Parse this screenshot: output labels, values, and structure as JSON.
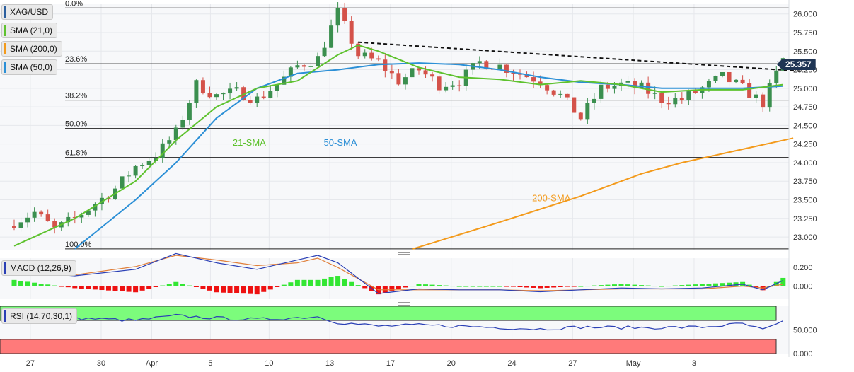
{
  "legend": {
    "symbol": "XAG/USD",
    "sma21": "SMA (21,0)",
    "sma200": "SMA (200,0)",
    "sma50": "SMA (50,0)",
    "macd": "MACD (12,26,9)",
    "rsi": "RSI (14,70,30,1)"
  },
  "colors": {
    "up": "#3b8f4f",
    "down": "#d4524a",
    "sma21": "#5ec22e",
    "sma50": "#2b8fd6",
    "sma200": "#f39a1b",
    "macd_line": "#2a3fb5",
    "signal_line": "#e07f3a",
    "hist_pos": "#33e633",
    "hist_neg": "#ee1111",
    "rsi_line": "#2a3fb5",
    "overbought": "#7cfc7c",
    "oversold": "#ff7a7a",
    "price_tag": "#1f3554"
  },
  "chart_data": [
    {
      "type": "candlestick",
      "title": "XAG/USD",
      "y_ticks": [
        "26.000",
        "25.750",
        "25.500",
        "25.250",
        "25.000",
        "24.750",
        "24.500",
        "24.250",
        "24.000",
        "23.750",
        "23.500",
        "23.250",
        "23.000"
      ],
      "x_ticks": [
        "27",
        "30",
        "Apr",
        "5",
        "10",
        "13",
        "17",
        "20",
        "24",
        "27",
        "May",
        "3"
      ],
      "ylim": [
        22.82,
        26.14
      ],
      "last_price": "25.357",
      "fibonacci": [
        {
          "label": "0.0%",
          "value": 26.08
        },
        {
          "label": "23.6%",
          "value": 25.33
        },
        {
          "label": "38.2%",
          "value": 24.84
        },
        {
          "label": "50.0%",
          "value": 24.46
        },
        {
          "label": "61.8%",
          "value": 24.07
        },
        {
          "label": "100.0%",
          "value": 22.84
        }
      ],
      "annotations": [
        {
          "text": "21-SMA",
          "series": "sma21"
        },
        {
          "text": "50-SMA",
          "series": "sma50"
        },
        {
          "text": "200-SMA",
          "series": "sma200"
        }
      ],
      "trendline": {
        "from": [
          17,
          25.62
        ],
        "to": [
          38.9,
          25.23
        ]
      },
      "x_index_of_ticks": [
        0.8,
        4.3,
        6.8,
        9.7,
        12.6,
        15.6,
        18.6,
        21.6,
        24.6,
        27.6,
        30.6,
        33.6
      ],
      "candles_anchor": [
        [
          0,
          23.2
        ],
        [
          1,
          23.33
        ],
        [
          2,
          23.1
        ],
        [
          3,
          23.25
        ],
        [
          4,
          23.45
        ],
        [
          5,
          23.65
        ],
        [
          6,
          23.95
        ],
        [
          7,
          24.1
        ],
        [
          8,
          24.4
        ],
        [
          9,
          25.05
        ],
        [
          10,
          24.9
        ],
        [
          11,
          24.95
        ],
        [
          12,
          24.85
        ],
        [
          13,
          25.05
        ],
        [
          14,
          25.3
        ],
        [
          15,
          25.4
        ],
        [
          16,
          26.02
        ],
        [
          17,
          25.45
        ],
        [
          18,
          25.35
        ],
        [
          19,
          25.1
        ],
        [
          20,
          25.25
        ],
        [
          21,
          25.05
        ],
        [
          22,
          25.1
        ],
        [
          23,
          25.35
        ],
        [
          24,
          25.3
        ],
        [
          25,
          25.2
        ],
        [
          26,
          25.1
        ],
        [
          27,
          24.9
        ],
        [
          28,
          24.6
        ],
        [
          29,
          25.0
        ],
        [
          30,
          25.05
        ],
        [
          31,
          25.0
        ],
        [
          32,
          24.85
        ],
        [
          33,
          24.85
        ],
        [
          34,
          25.0
        ],
        [
          35,
          25.15
        ],
        [
          36,
          25.0
        ],
        [
          37,
          24.8
        ],
        [
          38,
          25.39
        ]
      ],
      "sma21": [
        [
          0,
          22.88
        ],
        [
          3,
          23.25
        ],
        [
          6,
          23.75
        ],
        [
          8,
          24.3
        ],
        [
          10,
          24.75
        ],
        [
          12,
          25.0
        ],
        [
          14,
          25.1
        ],
        [
          16,
          25.45
        ],
        [
          17,
          25.58
        ],
        [
          18,
          25.5
        ],
        [
          20,
          25.28
        ],
        [
          22,
          25.15
        ],
        [
          24,
          25.12
        ],
        [
          26,
          25.05
        ],
        [
          28,
          25.1
        ],
        [
          30,
          25.05
        ],
        [
          32,
          24.95
        ],
        [
          34,
          24.98
        ],
        [
          36,
          24.98
        ],
        [
          38,
          25.05
        ]
      ],
      "sma50": [
        [
          3,
          22.84
        ],
        [
          6,
          23.5
        ],
        [
          8,
          24.0
        ],
        [
          10,
          24.6
        ],
        [
          12,
          25.0
        ],
        [
          14,
          25.2
        ],
        [
          16,
          25.25
        ],
        [
          18,
          25.32
        ],
        [
          20,
          25.34
        ],
        [
          22,
          25.32
        ],
        [
          24,
          25.25
        ],
        [
          26,
          25.15
        ],
        [
          28,
          25.08
        ],
        [
          30,
          25.05
        ],
        [
          32,
          25.0
        ],
        [
          34,
          25.0
        ],
        [
          36,
          25.0
        ],
        [
          38,
          25.03
        ]
      ],
      "sma200": [
        [
          19.7,
          22.84
        ],
        [
          24,
          23.2
        ],
        [
          28,
          23.55
        ],
        [
          31,
          23.85
        ],
        [
          33,
          24.0
        ],
        [
          36,
          24.18
        ],
        [
          38.5,
          24.33
        ]
      ]
    },
    {
      "type": "bar",
      "title": "MACD (12,26,9)",
      "y_ticks": [
        "0.200",
        "0.000"
      ],
      "ylim": [
        -0.14,
        0.3
      ],
      "macd_line": [
        [
          0,
          0.16
        ],
        [
          3,
          0.11
        ],
        [
          6,
          0.18
        ],
        [
          8,
          0.35
        ],
        [
          10,
          0.25
        ],
        [
          12,
          0.18
        ],
        [
          14,
          0.28
        ],
        [
          15,
          0.33
        ],
        [
          16,
          0.25
        ],
        [
          18,
          -0.08
        ],
        [
          20,
          -0.03
        ],
        [
          22,
          -0.04
        ],
        [
          24,
          -0.04
        ],
        [
          26,
          -0.06
        ],
        [
          28,
          -0.04
        ],
        [
          30,
          -0.02
        ],
        [
          32,
          -0.03
        ],
        [
          34,
          -0.02
        ],
        [
          36,
          0.02
        ],
        [
          37,
          -0.04
        ],
        [
          38,
          0.06
        ]
      ],
      "signal_line": [
        [
          0,
          0.13
        ],
        [
          3,
          0.12
        ],
        [
          6,
          0.21
        ],
        [
          8,
          0.33
        ],
        [
          10,
          0.28
        ],
        [
          12,
          0.22
        ],
        [
          14,
          0.25
        ],
        [
          15,
          0.3
        ],
        [
          16,
          0.2
        ],
        [
          18,
          -0.04
        ],
        [
          20,
          -0.04
        ],
        [
          22,
          -0.04
        ],
        [
          24,
          -0.04
        ],
        [
          26,
          -0.05
        ],
        [
          28,
          -0.04
        ],
        [
          30,
          -0.03
        ],
        [
          32,
          -0.03
        ],
        [
          34,
          -0.03
        ],
        [
          36,
          0.0
        ],
        [
          37,
          -0.02
        ],
        [
          38,
          0.02
        ]
      ]
    },
    {
      "type": "line",
      "title": "RSI (14,70,30,1)",
      "y_ticks": [
        "50.000",
        "0.000"
      ],
      "ylim": [
        0,
        100
      ],
      "overbought_band": [
        70,
        100
      ],
      "oversold_band": [
        0,
        30
      ],
      "rsi": [
        [
          0,
          78
        ],
        [
          3,
          75
        ],
        [
          6,
          70
        ],
        [
          8,
          80
        ],
        [
          10,
          75
        ],
        [
          12,
          72
        ],
        [
          14,
          76
        ],
        [
          15,
          78
        ],
        [
          16,
          66
        ],
        [
          18,
          58
        ],
        [
          20,
          60
        ],
        [
          22,
          58
        ],
        [
          24,
          55
        ],
        [
          26,
          52
        ],
        [
          28,
          56
        ],
        [
          30,
          55
        ],
        [
          32,
          55
        ],
        [
          34,
          56
        ],
        [
          36,
          63
        ],
        [
          37,
          50
        ],
        [
          38,
          66
        ]
      ]
    }
  ]
}
